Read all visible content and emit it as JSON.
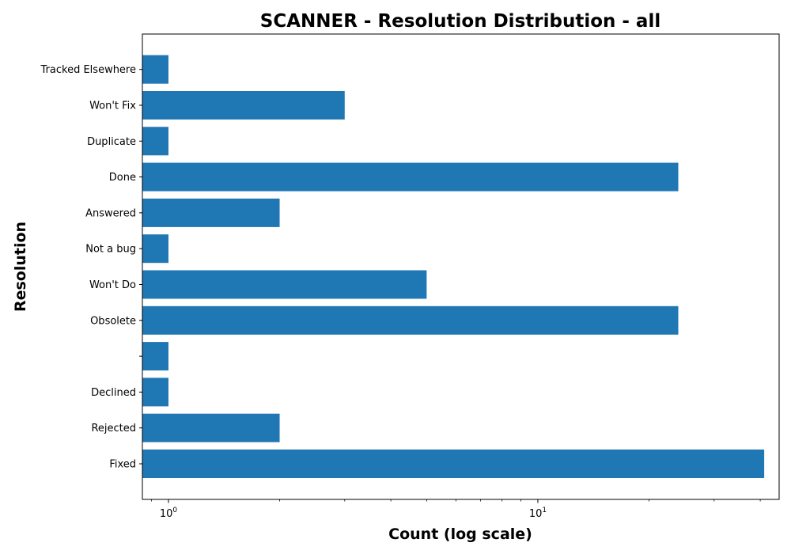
{
  "chart_data": {
    "type": "bar",
    "orientation": "horizontal",
    "title": "SCANNER - Resolution Distribution - all",
    "xlabel": "Count (log scale)",
    "ylabel": "Resolution",
    "x_scale": "log",
    "xlim": [
      0.85,
      45
    ],
    "x_ticks": [
      {
        "value": 1,
        "base": "10",
        "exp": "0"
      },
      {
        "value": 10,
        "base": "10",
        "exp": "1"
      }
    ],
    "categories": [
      "Fixed",
      "Rejected",
      "Declined",
      "",
      "Obsolete",
      "Won't Do",
      "Not a bug",
      "Answered",
      "Done",
      "Duplicate",
      "Won't Fix",
      "Tracked Elsewhere"
    ],
    "values": [
      41,
      2,
      1,
      1,
      24,
      5,
      1,
      2,
      24,
      1,
      3,
      1
    ],
    "bar_color": "#1f77b4",
    "grid": false,
    "legend": false
  }
}
